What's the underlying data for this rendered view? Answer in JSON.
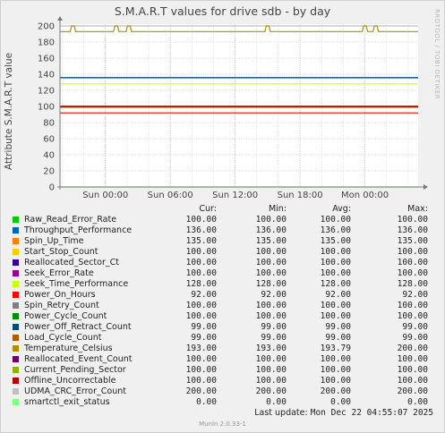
{
  "side_label": "RRDTOOL / TOBI OETIKER",
  "legend_headers": [
    "Cur:",
    "Min:",
    "Avg:",
    "Max:"
  ],
  "footer": {
    "label": "Last update:",
    "value": "Mon Dec 22 04:55:07 2025",
    "munin": "Munin 2.0.33-1"
  },
  "chart_data": {
    "type": "line",
    "title": "S.M.A.R.T values for drive sdb - by day",
    "ylabel": "Attribute S.M.A.R.T value",
    "xlabel": "",
    "ylim": [
      0,
      200
    ],
    "yticks": [
      0,
      20,
      40,
      60,
      80,
      100,
      120,
      140,
      160,
      180,
      200
    ],
    "xtick_labels": [
      "Sun 00:00",
      "Sun 06:00",
      "Sun 12:00",
      "Sun 18:00",
      "Mon 00:00"
    ],
    "grid": true,
    "temperature_dips": [
      {
        "at": "Sat 21:00",
        "value": 200
      },
      {
        "at": "Sun 01:00",
        "value": 200
      },
      {
        "at": "Sun 02:10",
        "value": 200
      },
      {
        "at": "Sun 15:00",
        "value": 200
      },
      {
        "at": "Mon 00:00",
        "value": 200
      },
      {
        "at": "Mon 01:00",
        "value": 200
      }
    ],
    "series": [
      {
        "name": "Raw_Read_Error_Rate",
        "color": "#00cc00",
        "cur": "100.00",
        "min": "100.00",
        "avg": "100.00",
        "max": "100.00",
        "value": 100
      },
      {
        "name": "Throughput_Performance",
        "color": "#0066b3",
        "cur": "136.00",
        "min": "136.00",
        "avg": "136.00",
        "max": "136.00",
        "value": 136
      },
      {
        "name": "Spin_Up_Time",
        "color": "#ff8000",
        "cur": "135.00",
        "min": "135.00",
        "avg": "135.00",
        "max": "135.00",
        "value": 135
      },
      {
        "name": "Start_Stop_Count",
        "color": "#ffcc00",
        "cur": "100.00",
        "min": "100.00",
        "avg": "100.00",
        "max": "100.00",
        "value": 100
      },
      {
        "name": "Reallocated_Sector_Ct",
        "color": "#330099",
        "cur": "100.00",
        "min": "100.00",
        "avg": "100.00",
        "max": "100.00",
        "value": 100
      },
      {
        "name": "Seek_Error_Rate",
        "color": "#990099",
        "cur": "100.00",
        "min": "100.00",
        "avg": "100.00",
        "max": "100.00",
        "value": 100
      },
      {
        "name": "Seek_Time_Performance",
        "color": "#ccff00",
        "cur": "128.00",
        "min": "128.00",
        "avg": "128.00",
        "max": "128.00",
        "value": 128
      },
      {
        "name": "Power_On_Hours",
        "color": "#ff0000",
        "cur": "92.00",
        "min": "92.00",
        "avg": "92.00",
        "max": "92.00",
        "value": 92
      },
      {
        "name": "Spin_Retry_Count",
        "color": "#808080",
        "cur": "100.00",
        "min": "100.00",
        "avg": "100.00",
        "max": "100.00",
        "value": 100
      },
      {
        "name": "Power_Cycle_Count",
        "color": "#008f00",
        "cur": "100.00",
        "min": "100.00",
        "avg": "100.00",
        "max": "100.00",
        "value": 100
      },
      {
        "name": "Power_Off_Retract_Count",
        "color": "#00487d",
        "cur": "99.00",
        "min": "99.00",
        "avg": "99.00",
        "max": "99.00",
        "value": 99
      },
      {
        "name": "Load_Cycle_Count",
        "color": "#b35a00",
        "cur": "99.00",
        "min": "99.00",
        "avg": "99.00",
        "max": "99.00",
        "value": 99
      },
      {
        "name": "Temperature_Celsius",
        "color": "#b38f00",
        "cur": "193.00",
        "min": "193.00",
        "avg": "193.79",
        "max": "200.00",
        "value": 193
      },
      {
        "name": "Reallocated_Event_Count",
        "color": "#6b006b",
        "cur": "100.00",
        "min": "100.00",
        "avg": "100.00",
        "max": "100.00",
        "value": 100
      },
      {
        "name": "Current_Pending_Sector",
        "color": "#8fb300",
        "cur": "100.00",
        "min": "100.00",
        "avg": "100.00",
        "max": "100.00",
        "value": 100
      },
      {
        "name": "Offline_Uncorrectable",
        "color": "#b30000",
        "cur": "100.00",
        "min": "100.00",
        "avg": "100.00",
        "max": "100.00",
        "value": 100
      },
      {
        "name": "UDMA_CRC_Error_Count",
        "color": "#bebebe",
        "cur": "200.00",
        "min": "200.00",
        "avg": "200.00",
        "max": "200.00",
        "value": 200
      },
      {
        "name": "smartctl_exit_status",
        "color": "#80ff80",
        "cur": "0.00",
        "min": "0.00",
        "avg": "0.00",
        "max": "0.00",
        "value": 0
      }
    ]
  }
}
